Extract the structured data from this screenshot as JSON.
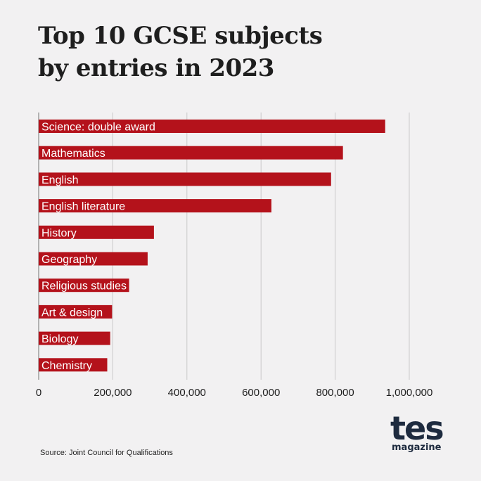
{
  "title_lines": [
    "Top 10 GCSE subjects",
    "by entries in 2023"
  ],
  "source": "Source: Joint Council for Qualifications",
  "logo": {
    "word": "tes",
    "sub": "magazine"
  },
  "colors": {
    "bar": "#b4121b",
    "grid": "#c9c9c9",
    "axis": "#888888",
    "text": "#1e1e1e"
  },
  "chart_data": {
    "type": "bar",
    "orientation": "horizontal",
    "title": "Top 10 GCSE subjects by entries in 2023",
    "categories": [
      "Science: double award",
      "Mathematics",
      "English",
      "English literature",
      "History",
      "Geography",
      "Religious studies",
      "Art & design",
      "Biology",
      "Chemistry"
    ],
    "values": [
      935000,
      821000,
      789000,
      628000,
      311000,
      294000,
      244000,
      198000,
      193000,
      185000
    ],
    "xlim": [
      0,
      1000000
    ],
    "xticks": [
      0,
      200000,
      400000,
      600000,
      800000,
      1000000
    ],
    "xtick_labels": [
      "0",
      "200,000",
      "400,000",
      "600,000",
      "800,000",
      "1,000,000"
    ],
    "grid": true,
    "legend": "none"
  }
}
